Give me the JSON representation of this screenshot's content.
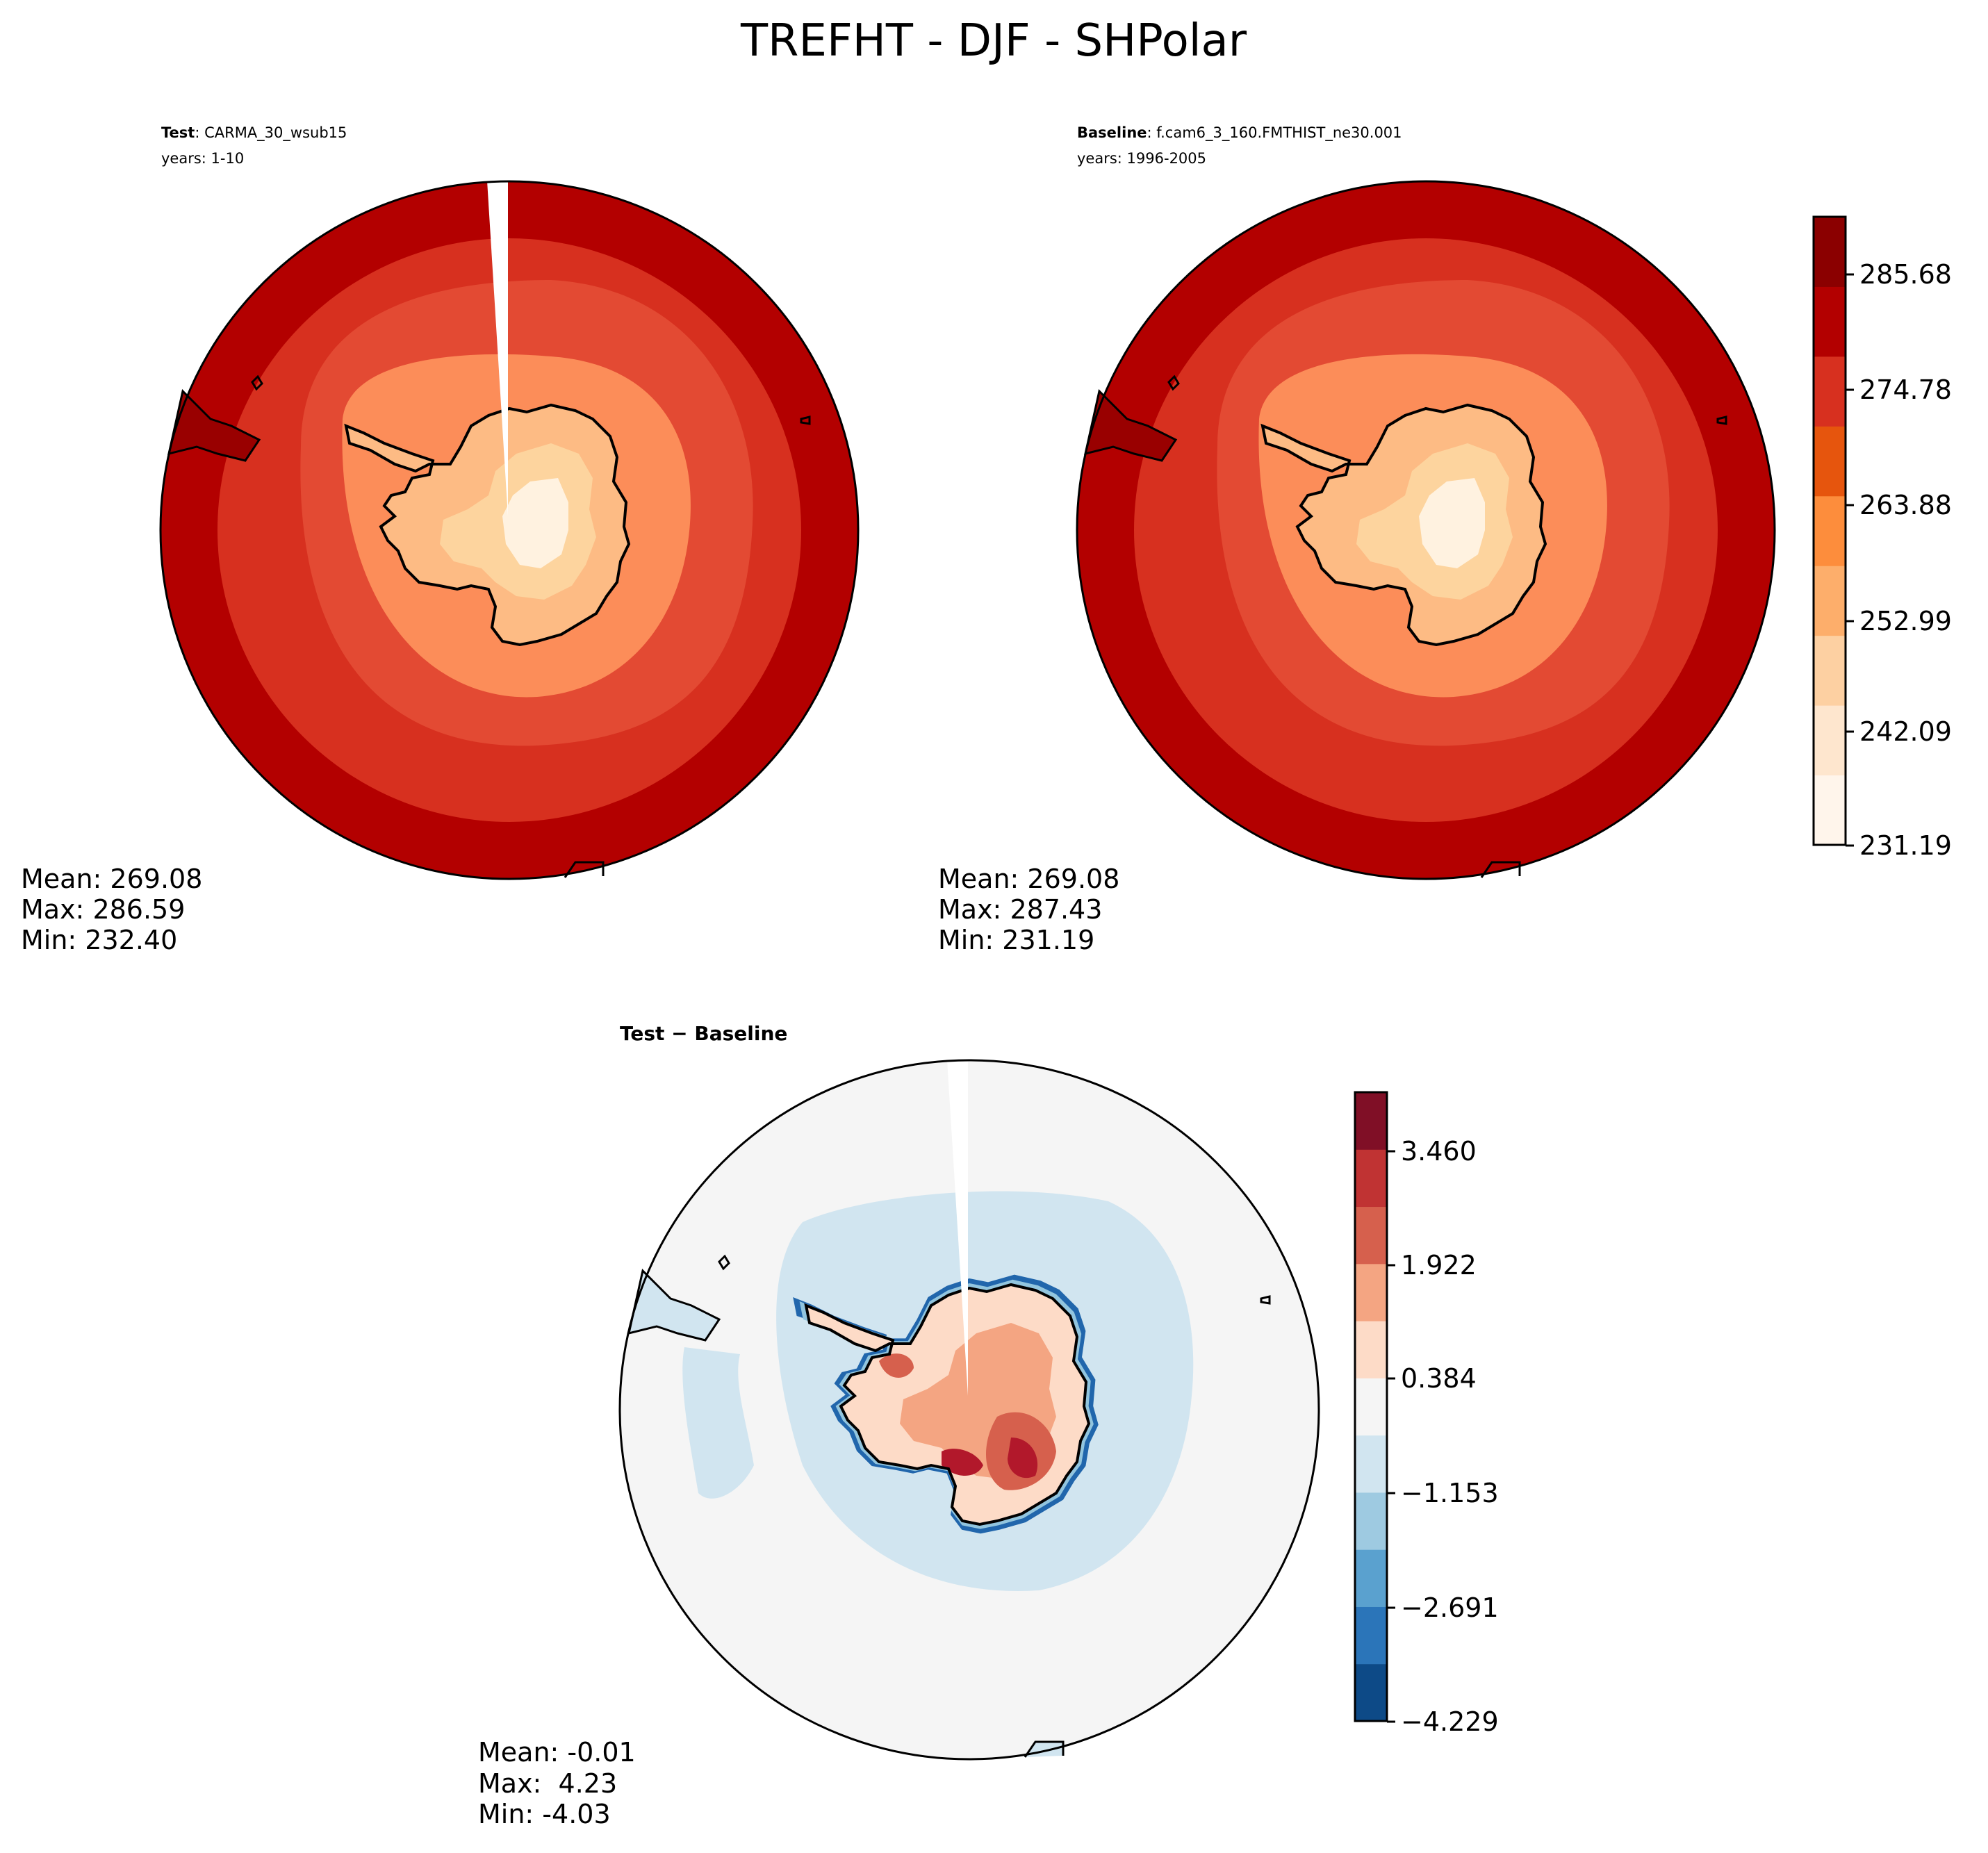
{
  "title": "TREFHT - DJF - SHPolar",
  "panels": {
    "test": {
      "label_bold": "Test",
      "label_rest": ": CARMA_30_wsub15",
      "years": "years: 1-10",
      "stats": {
        "mean": "Mean: 269.08",
        "max": "Max: 286.59",
        "min": "Min: 232.40"
      }
    },
    "baseline": {
      "label_bold": "Baseline",
      "label_rest": ": f.cam6_3_160.FMTHIST_ne30.001",
      "years": "years: 1996-2005",
      "stats": {
        "mean": "Mean: 269.08",
        "max": "Max: 287.43",
        "min": "Min: 231.19"
      }
    },
    "diff": {
      "label": "Test − Baseline",
      "stats": {
        "mean": "Mean: -0.01",
        "max": "Max:  4.23",
        "min": "Min: -4.03"
      }
    }
  },
  "colorbars": {
    "main": {
      "ticks": [
        "285.68",
        "274.78",
        "263.88",
        "252.99",
        "242.09",
        "231.19"
      ],
      "colors_low_to_high": [
        "#fff5eb",
        "#fee6ce",
        "#fdd0a2",
        "#fdae6b",
        "#fd8d3c",
        "#e6550d",
        "#d7301f",
        "#b30000",
        "#8b0000"
      ]
    },
    "diff": {
      "ticks": [
        "3.460",
        "1.922",
        "0.384",
        "−1.153",
        "−2.691",
        "−4.229"
      ],
      "colors_low_to_high": [
        "#0d4a87",
        "#2b75b9",
        "#5aa1cf",
        "#9ecae1",
        "#d1e5f0",
        "#f5f5f5",
        "#fddbc7",
        "#f4a582",
        "#d6604d",
        "#c03333",
        "#800f26"
      ]
    }
  },
  "map_colors": {
    "ocean_outer": "#b30000",
    "ocean_mid": "#d7301f",
    "ocean_inner": "#e34a33",
    "shelf": "#fc8d59",
    "coast": "#fdbb84",
    "plateau_low": "#fdd49e",
    "plateau_high": "#fff2e0",
    "dark_patch": "#990000",
    "diff_neutral": "#f5f5f5",
    "diff_light_blue": "#d1e5f0",
    "diff_blue": "#92c5de",
    "diff_dark_blue": "#2166ac",
    "diff_light_red": "#f4a582",
    "diff_red": "#d6604d",
    "diff_dark_red": "#b2182b",
    "coastline": "#000000"
  }
}
